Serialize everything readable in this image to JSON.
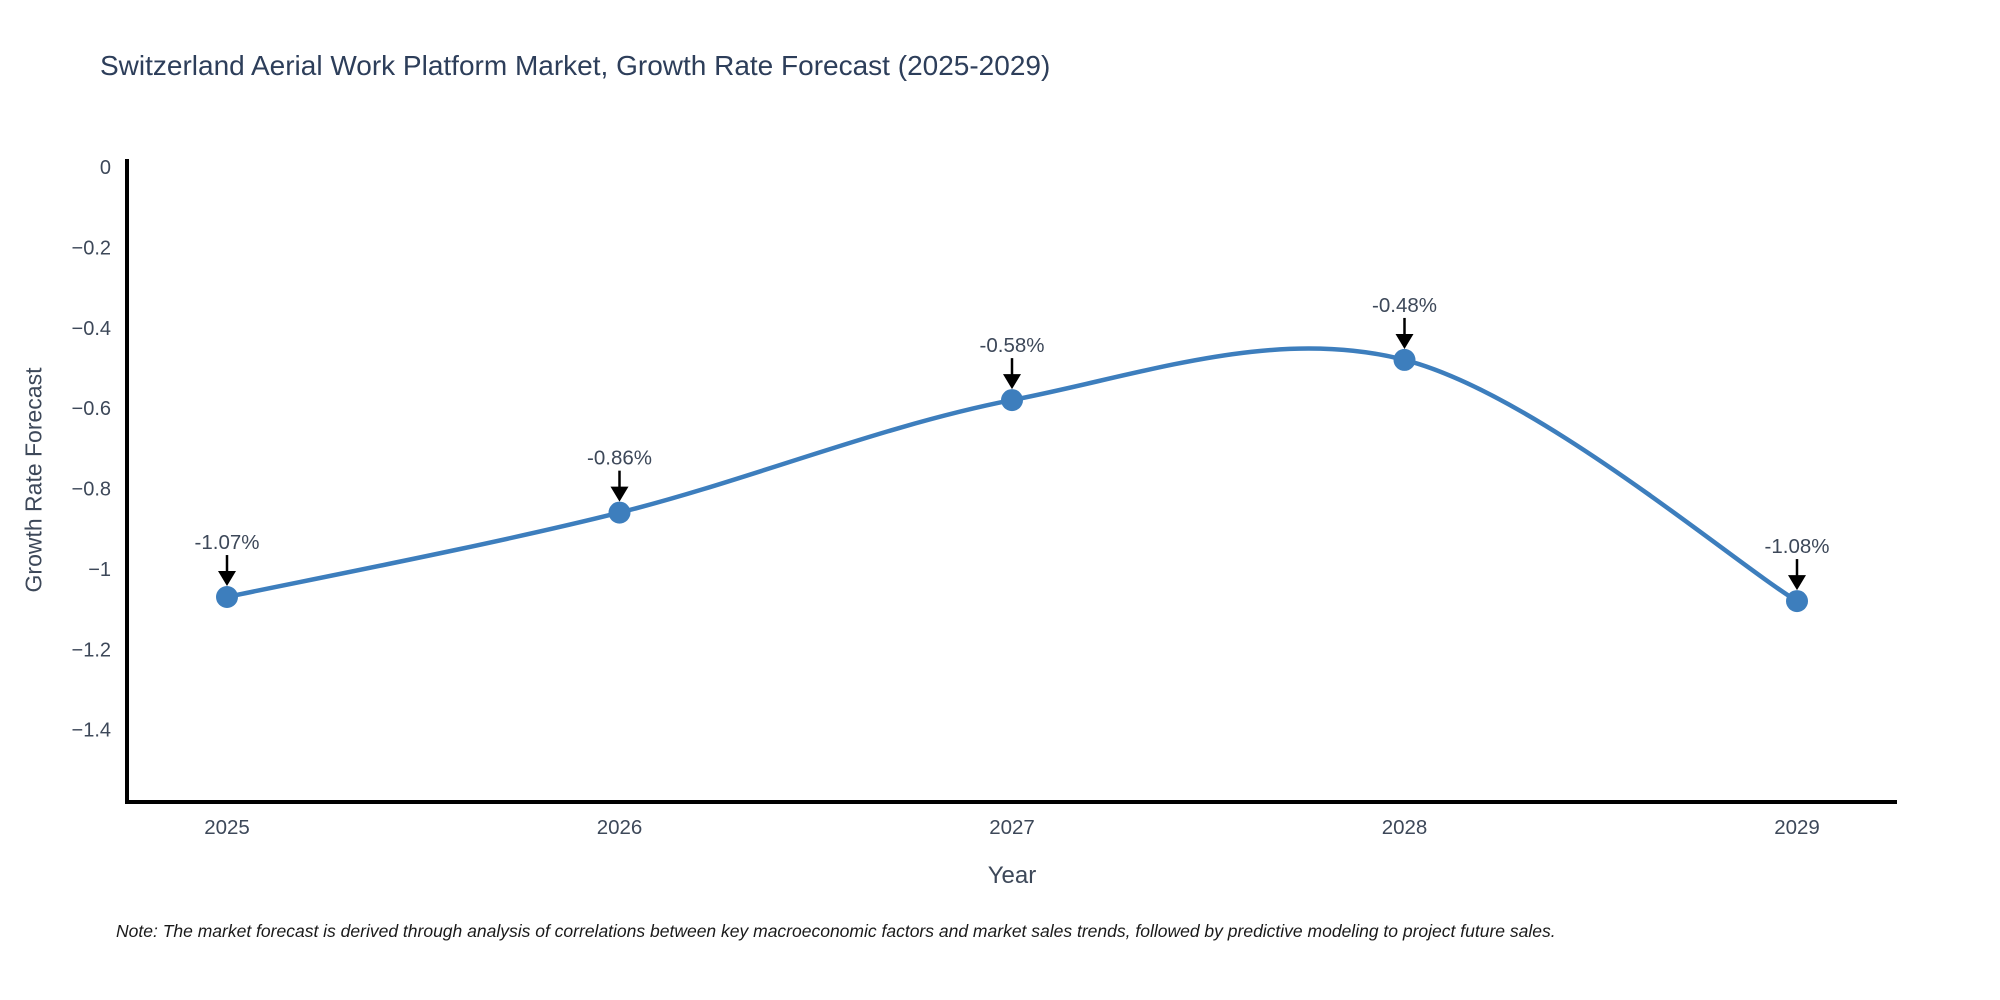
{
  "note": "Note: The market forecast is derived through analysis of correlations between key macroeconomic factors and market sales trends, followed by predictive modeling to project future sales.",
  "chart_data": {
    "type": "line",
    "title": "Switzerland Aerial Work Platform Market, Growth Rate Forecast (2025-2029)",
    "xlabel": "Year",
    "ylabel": "Growth Rate Forecast",
    "x": [
      2025,
      2026,
      2027,
      2028,
      2029
    ],
    "y": [
      -1.07,
      -0.86,
      -0.58,
      -0.48,
      -1.08
    ],
    "point_labels": [
      "-1.07%",
      "-0.86%",
      "-0.58%",
      "-0.48%",
      "-1.08%"
    ],
    "yticks": [
      0,
      -0.2,
      -0.4,
      -0.6,
      -0.8,
      -1,
      -1.2,
      -1.4
    ],
    "ytick_labels": [
      "0",
      "−0.2",
      "−0.4",
      "−0.6",
      "−0.8",
      "−1",
      "−1.2",
      "−1.4"
    ],
    "ylim": [
      -1.58,
      0.02
    ],
    "line_shape": "spline",
    "legend": "none",
    "grid": false,
    "line_color": "#3d7ebd",
    "marker_color": "#3d7ebd",
    "axis_color": "#000000",
    "annotation_arrow_color": "#000000",
    "tick_label_color": "#3d4859"
  }
}
